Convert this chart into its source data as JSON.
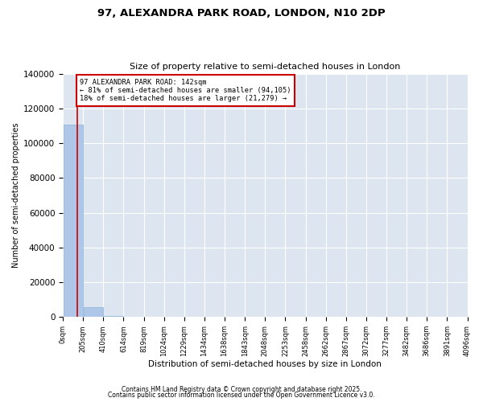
{
  "title_line1": "97, ALEXANDRA PARK ROAD, LONDON, N10 2DP",
  "title_line2": "Size of property relative to semi-detached houses in London",
  "xlabel": "Distribution of semi-detached houses by size in London",
  "ylabel": "Number of semi-detached properties",
  "annotation_title": "97 ALEXANDRA PARK ROAD: 142sqm",
  "annotation_line2": "← 81% of semi-detached houses are smaller (94,105)",
  "annotation_line3": "18% of semi-detached houses are larger (21,279) →",
  "footnote1": "Contains HM Land Registry data © Crown copyright and database right 2025.",
  "footnote2": "Contains public sector information licensed under the Open Government Licence v3.0.",
  "property_size_sqm": 142,
  "bar_edges": [
    0,
    205,
    410,
    614,
    819,
    1024,
    1229,
    1434,
    1638,
    1843,
    2048,
    2253,
    2458,
    2662,
    2867,
    3072,
    3277,
    3482,
    3686,
    3891,
    4096
  ],
  "bar_heights": [
    110500,
    5500,
    600,
    200,
    100,
    50,
    30,
    20,
    15,
    10,
    8,
    6,
    5,
    4,
    3,
    3,
    2,
    2,
    1,
    1
  ],
  "bar_color": "#aec6e8",
  "bar_edge_color": "#7aaad4",
  "vline_color": "#cc0000",
  "vline_x": 142,
  "annotation_box_color": "#cc0000",
  "background_color": "#dde6f0",
  "ylim": [
    0,
    140000
  ],
  "yticks": [
    0,
    20000,
    40000,
    60000,
    80000,
    100000,
    120000,
    140000
  ],
  "tick_labels": [
    "0sqm",
    "205sqm",
    "410sqm",
    "614sqm",
    "819sqm",
    "1024sqm",
    "1229sqm",
    "1434sqm",
    "1638sqm",
    "1843sqm",
    "2048sqm",
    "2253sqm",
    "2458sqm",
    "2662sqm",
    "2867sqm",
    "3072sqm",
    "3277sqm",
    "3482sqm",
    "3686sqm",
    "3891sqm",
    "4096sqm"
  ],
  "figsize": [
    6.0,
    5.0
  ],
  "dpi": 100
}
